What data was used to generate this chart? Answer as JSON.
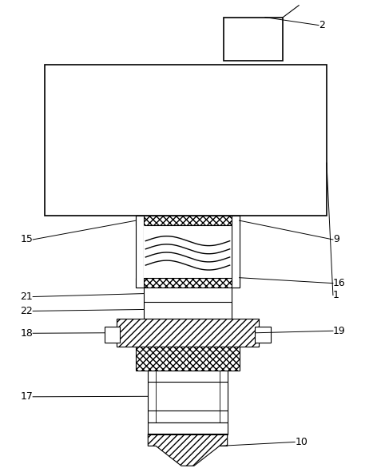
{
  "background_color": "#ffffff",
  "line_color": "#000000",
  "fig_width": 4.67,
  "fig_height": 5.91,
  "dpi": 100
}
